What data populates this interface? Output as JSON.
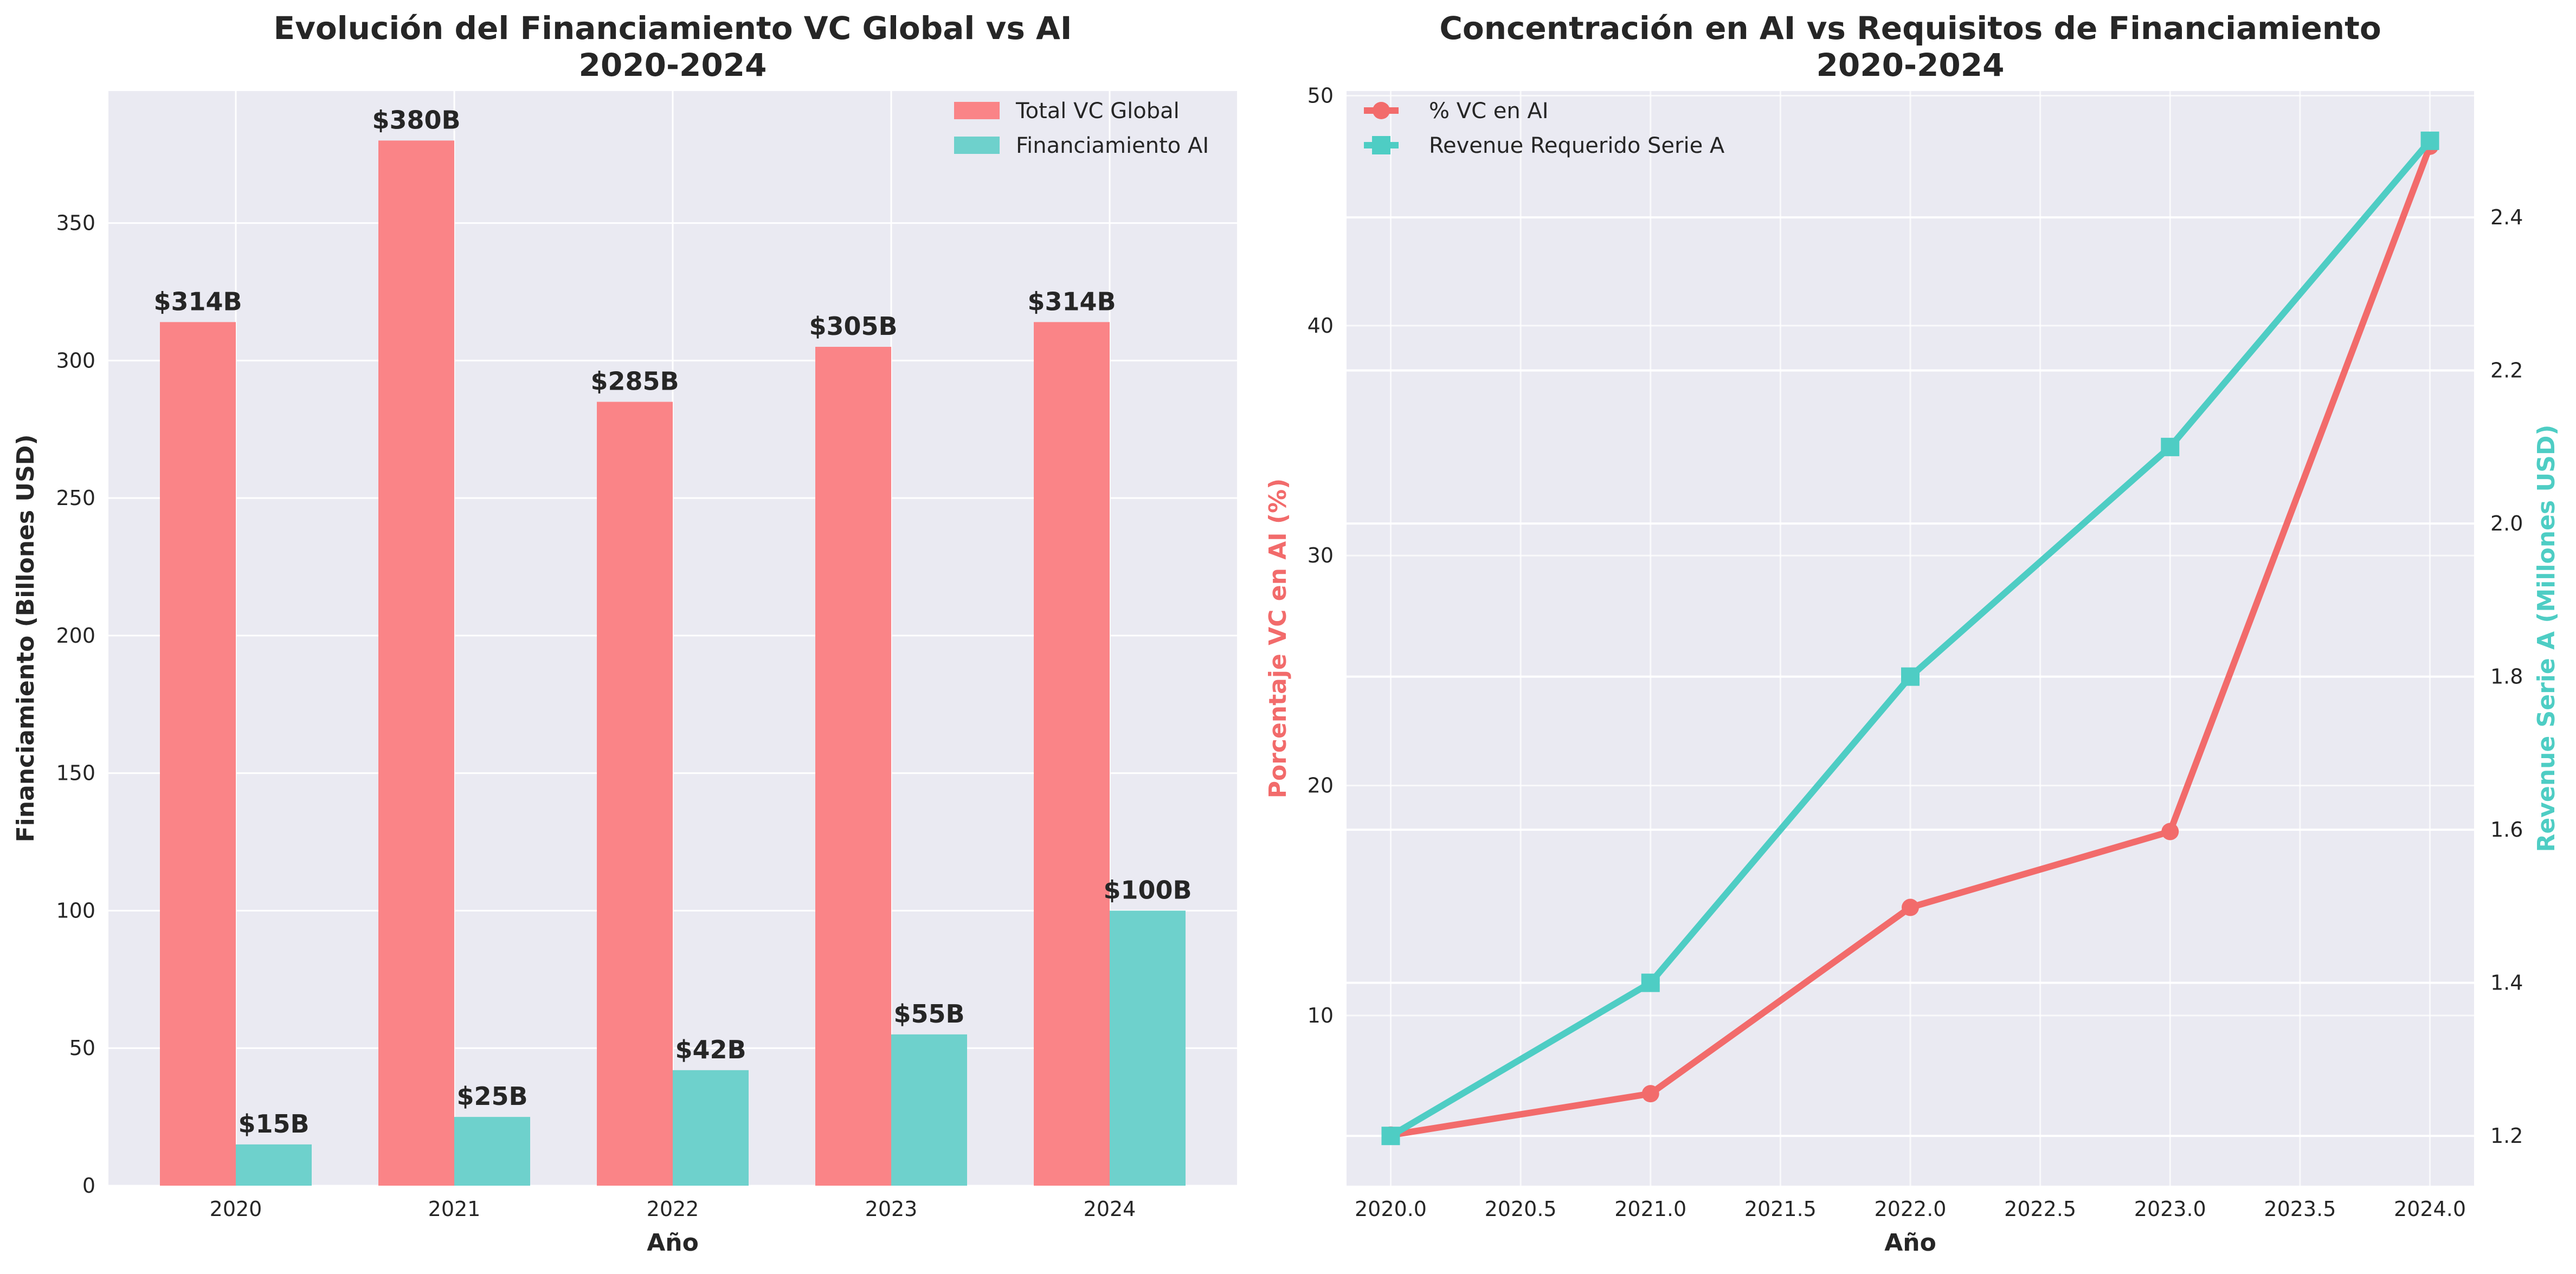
{
  "chart_data": [
    {
      "type": "bar",
      "title": "Evolución del Financiamiento VC Global vs AI\n2020-2024",
      "xlabel": "Año",
      "ylabel": "Financiamiento (Billones USD)",
      "categories": [
        "2020",
        "2021",
        "2022",
        "2023",
        "2024"
      ],
      "ylim": [
        0,
        398
      ],
      "yticks": [
        0,
        50,
        100,
        150,
        200,
        250,
        300,
        350
      ],
      "grid": true,
      "legend": "top-right",
      "series": [
        {
          "name": "Total VC Global",
          "values": [
            314,
            380,
            285,
            305,
            314
          ],
          "labels": [
            "$314B",
            "$380B",
            "$285B",
            "$305B",
            "$314B"
          ],
          "color": "#FA8487"
        },
        {
          "name": "Financiamiento AI",
          "values": [
            15,
            25,
            42,
            55,
            100
          ],
          "labels": [
            "$15B",
            "$25B",
            "$42B",
            "$55B",
            "$100B"
          ],
          "color": "#6ED1CC"
        }
      ]
    },
    {
      "type": "line",
      "title": "Concentración en AI vs Requisitos de Financiamiento\n2020-2024",
      "xlabel": "Año",
      "ylabel": "Porcentaje VC en AI (%)",
      "ylabel_right": "Revenue Serie A (Millones USD)",
      "x": [
        2020,
        2021,
        2022,
        2023,
        2024
      ],
      "xlim": [
        2019.83,
        2024.17
      ],
      "xticks": [
        "2020.0",
        "2020.5",
        "2021.0",
        "2021.5",
        "2022.0",
        "2022.5",
        "2023.0",
        "2023.5",
        "2024.0"
      ],
      "ylim": [
        2.6,
        50.2
      ],
      "yticks": [
        10,
        20,
        30,
        40,
        50
      ],
      "ylim_right": [
        1.135,
        2.565
      ],
      "yticks_right": [
        "1.2",
        "1.4",
        "1.6",
        "1.8",
        "2.0",
        "2.2",
        "2.4"
      ],
      "grid": true,
      "legend": "top-left",
      "series": [
        {
          "name": "% VC en AI",
          "axis": "left",
          "marker": "circle",
          "values": [
            4.8,
            6.6,
            14.7,
            18.0,
            47.8
          ],
          "color": "#F26B6B"
        },
        {
          "name": "Revenue Requerido Serie A",
          "axis": "right",
          "marker": "square",
          "values": [
            1.2,
            1.4,
            1.8,
            2.1,
            2.5
          ],
          "color": "#4ECDC4"
        }
      ]
    }
  ],
  "style": {
    "plot_background": "#EAEAF2",
    "grid_color": "#FFFFFF",
    "text_color": "#262626"
  }
}
